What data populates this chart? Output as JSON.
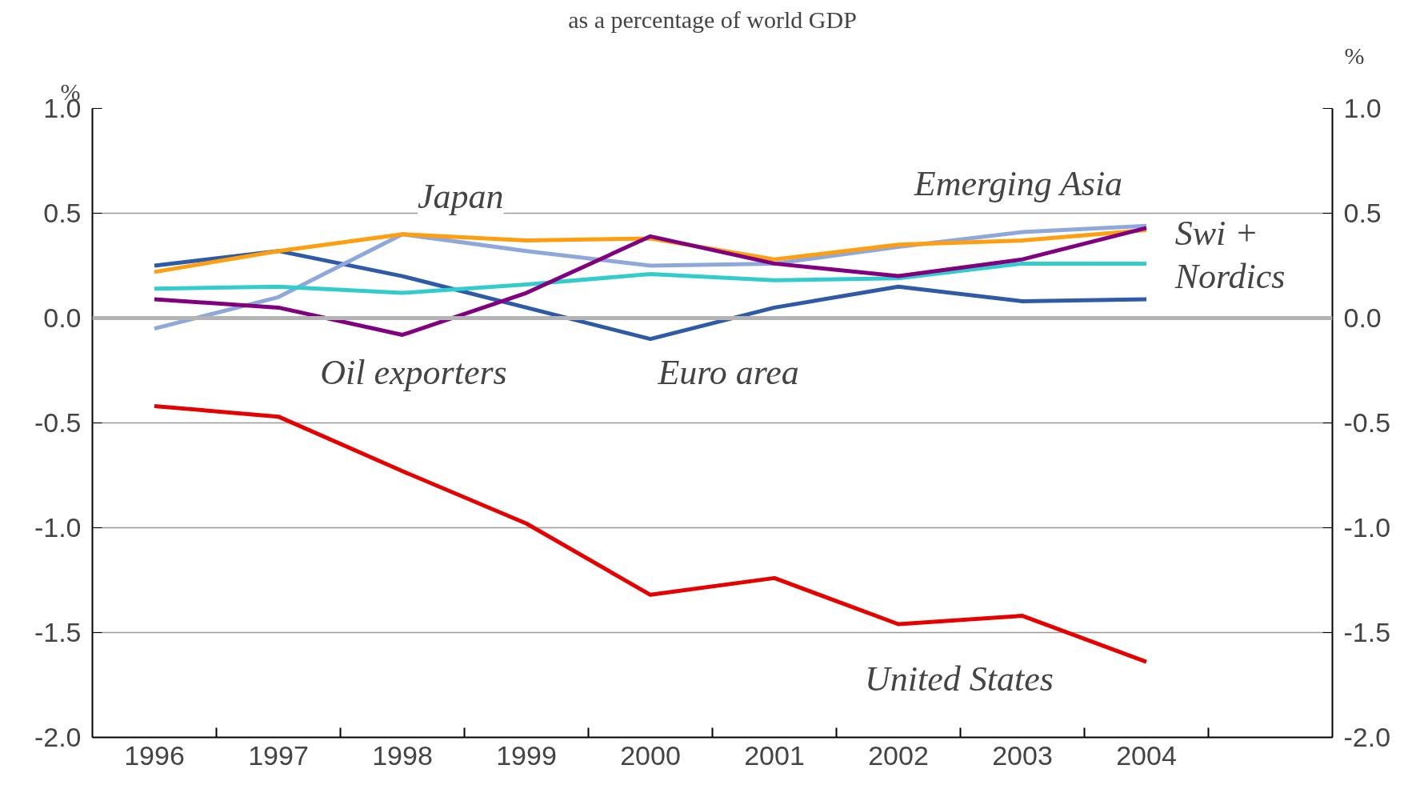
{
  "chart_data": {
    "type": "line",
    "title": "as a percentage of world GDP",
    "ylabel": "%",
    "y2label": "%",
    "categories": [
      "1996",
      "1997",
      "1998",
      "1999",
      "2000",
      "2001",
      "2002",
      "2003",
      "2004",
      null
    ],
    "series": [
      {
        "name": "Euro area",
        "color": "#2e5aa8",
        "values": [
          0.25,
          0.32,
          0.2,
          0.05,
          -0.1,
          0.05,
          0.15,
          0.08,
          0.09,
          null
        ]
      },
      {
        "name": "Emerging Asia",
        "color": "#8fa8dc",
        "values": [
          -0.05,
          0.1,
          0.4,
          0.32,
          0.25,
          0.26,
          0.34,
          0.41,
          0.44,
          null
        ]
      },
      {
        "name": "Japan",
        "color": "#ff9e0f",
        "values": [
          0.22,
          0.32,
          0.4,
          0.37,
          0.38,
          0.28,
          0.35,
          0.37,
          0.42,
          null
        ]
      },
      {
        "name": "Swi + Nordics",
        "color": "#33cccc",
        "values": [
          0.14,
          0.15,
          0.12,
          0.16,
          0.21,
          0.18,
          0.19,
          0.26,
          0.26,
          null
        ]
      },
      {
        "name": "Oil exporters",
        "color": "#800080",
        "values": [
          0.09,
          0.05,
          -0.08,
          0.12,
          0.39,
          0.26,
          0.2,
          0.28,
          0.43,
          null
        ]
      },
      {
        "name": "United States",
        "color": "#e60000",
        "values": [
          -0.42,
          -0.47,
          -0.73,
          -0.98,
          -1.32,
          -1.24,
          -1.46,
          -1.42,
          -1.64,
          null
        ]
      }
    ],
    "ylim": [
      -2.0,
      1.0
    ],
    "yticks": [
      {
        "value": 1.0,
        "label": "1.0"
      },
      {
        "value": 0.5,
        "label": "0.5"
      },
      {
        "value": 0.0,
        "label": "0.0"
      },
      {
        "value": -0.5,
        "label": "-0.5"
      },
      {
        "value": -1.0,
        "label": "-1.0"
      },
      {
        "value": -1.5,
        "label": "-1.5"
      },
      {
        "value": -2.0,
        "label": "-2.0"
      }
    ],
    "y2lim": [
      -2.0,
      1.0
    ],
    "y2ticks": [
      {
        "value": 1.0,
        "label": "1.0"
      },
      {
        "value": 0.5,
        "label": "0.5"
      },
      {
        "value": 0.0,
        "label": "0.0"
      },
      {
        "value": -0.5,
        "label": "-0.5"
      },
      {
        "value": -1.0,
        "label": "-1.0"
      },
      {
        "value": -1.5,
        "label": "-1.5"
      },
      {
        "value": -2.0,
        "label": "-2.0"
      }
    ],
    "ref_lines": [
      {
        "axis": "y",
        "value": 0,
        "color": "#b3b3b3"
      }
    ],
    "grid": "y",
    "marker": "none",
    "line_style": "solid"
  }
}
